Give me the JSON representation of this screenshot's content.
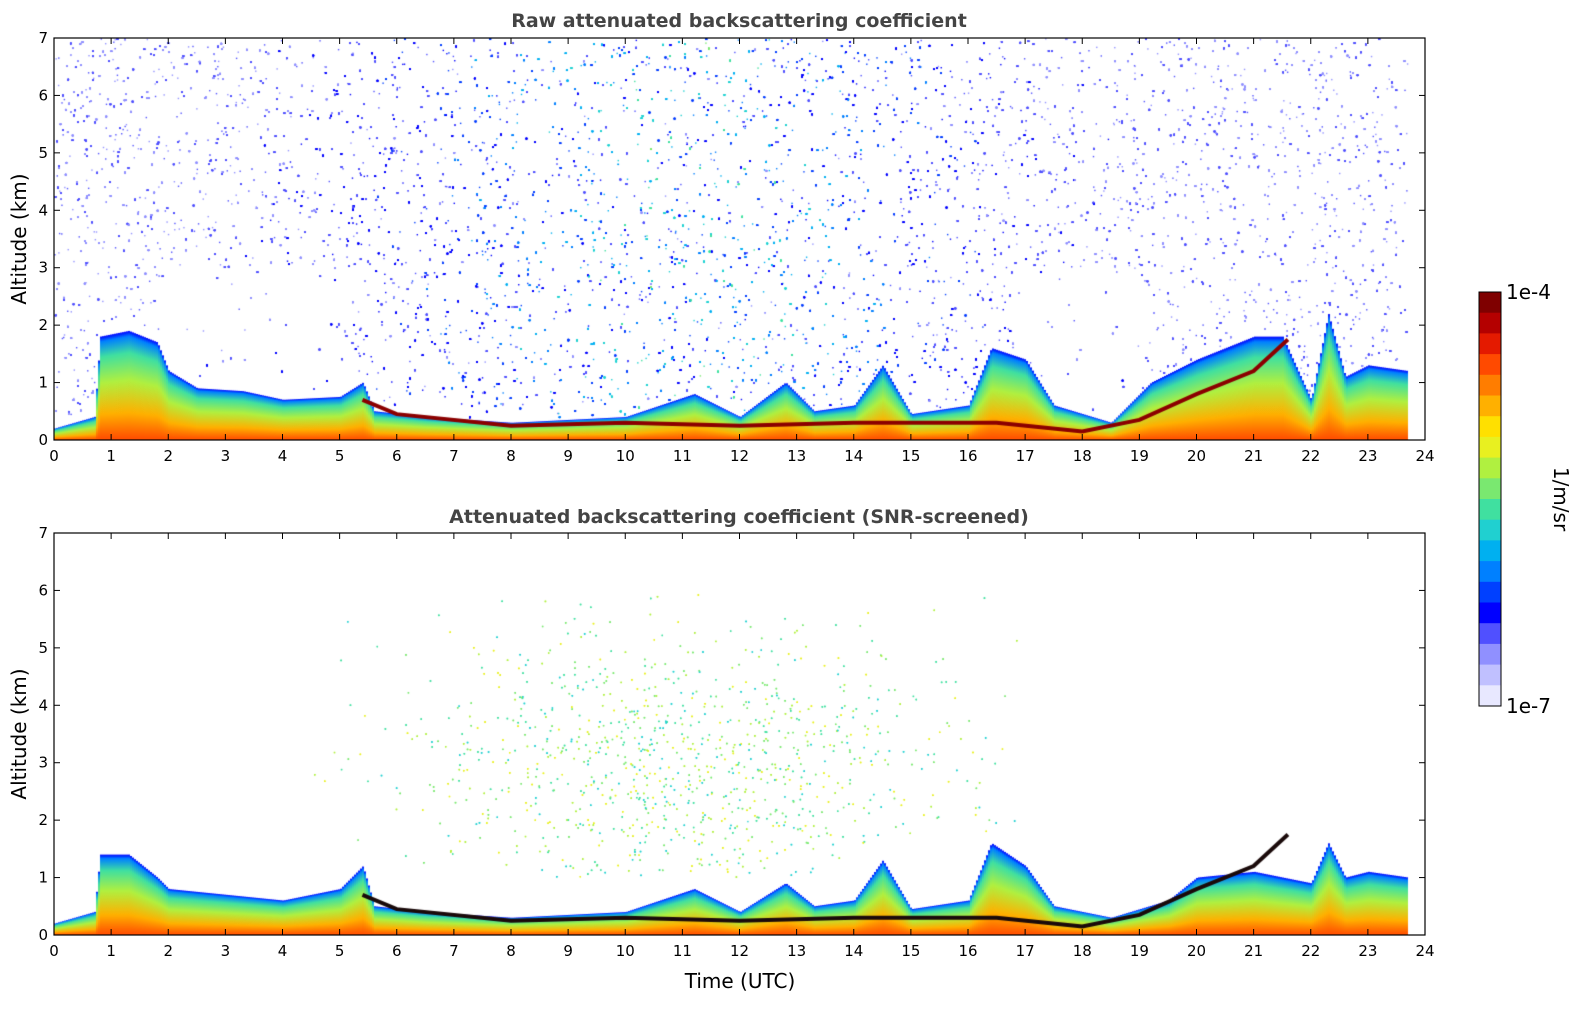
{
  "chart_data": [
    {
      "type": "heatmap",
      "title": "Raw attenuated backscattering coefficient",
      "xlabel": "",
      "ylabel": "Altitude (km)",
      "xlim": [
        0,
        24
      ],
      "ylim": [
        0,
        7
      ],
      "xticks": [
        "0",
        "1",
        "2",
        "3",
        "4",
        "5",
        "6",
        "7",
        "8",
        "9",
        "10",
        "11",
        "12",
        "13",
        "14",
        "15",
        "16",
        "17",
        "18",
        "19",
        "20",
        "21",
        "22",
        "23",
        "24"
      ],
      "yticks": [
        "0",
        "1",
        "2",
        "3",
        "4",
        "5",
        "6",
        "7"
      ],
      "data_end_hour": 23.7,
      "noise_level": "high",
      "boundary_layer_top_km": [
        [
          0,
          0.2
        ],
        [
          0.7,
          0.4
        ],
        [
          0.8,
          1.8
        ],
        [
          1.3,
          1.9
        ],
        [
          1.8,
          1.7
        ],
        [
          2,
          1.2
        ],
        [
          2.5,
          0.9
        ],
        [
          3.3,
          0.85
        ],
        [
          4,
          0.7
        ],
        [
          5,
          0.75
        ],
        [
          5.4,
          1.0
        ],
        [
          5.6,
          0.5
        ],
        [
          6.5,
          0.4
        ],
        [
          8,
          0.3
        ],
        [
          10,
          0.4
        ],
        [
          11.2,
          0.8
        ],
        [
          12,
          0.4
        ],
        [
          12.8,
          1.0
        ],
        [
          13.3,
          0.5
        ],
        [
          14,
          0.6
        ],
        [
          14.5,
          1.3
        ],
        [
          15,
          0.45
        ],
        [
          16,
          0.6
        ],
        [
          16.4,
          1.6
        ],
        [
          17,
          1.4
        ],
        [
          17.5,
          0.6
        ],
        [
          18.5,
          0.3
        ],
        [
          19.2,
          1.0
        ],
        [
          20,
          1.4
        ],
        [
          21,
          1.8
        ],
        [
          21.5,
          1.8
        ],
        [
          22,
          0.7
        ],
        [
          22.3,
          2.2
        ],
        [
          22.6,
          1.1
        ],
        [
          23,
          1.3
        ],
        [
          23.7,
          1.2
        ]
      ],
      "elevated_layer_km": [
        [
          5.4,
          0.7
        ],
        [
          6,
          0.45
        ],
        [
          8,
          0.25
        ],
        [
          10,
          0.3
        ],
        [
          12,
          0.25
        ],
        [
          14,
          0.3
        ],
        [
          15,
          0.3
        ],
        [
          16.5,
          0.3
        ],
        [
          18,
          0.15
        ],
        [
          19,
          0.35
        ],
        [
          20,
          0.8
        ],
        [
          21,
          1.2
        ],
        [
          21.6,
          1.75
        ]
      ],
      "colorscale_label": "1/m/sr"
    },
    {
      "type": "heatmap",
      "title": "Attenuated backscattering coefficient (SNR-screened)",
      "xlabel": "Time (UTC)",
      "ylabel": "Altitude (km)",
      "xlim": [
        0,
        24
      ],
      "ylim": [
        0,
        7
      ],
      "xticks": [
        "0",
        "1",
        "2",
        "3",
        "4",
        "5",
        "6",
        "7",
        "8",
        "9",
        "10",
        "11",
        "12",
        "13",
        "14",
        "15",
        "16",
        "17",
        "18",
        "19",
        "20",
        "21",
        "22",
        "23",
        "24"
      ],
      "yticks": [
        "0",
        "1",
        "2",
        "3",
        "4",
        "5",
        "6",
        "7"
      ],
      "data_end_hour": 23.7,
      "noise_level": "screened",
      "aerosol_haze_region": {
        "hours": [
          4.5,
          17
        ],
        "altitude_km": [
          1,
          6
        ]
      },
      "boundary_layer_top_km": [
        [
          0,
          0.2
        ],
        [
          0.7,
          0.4
        ],
        [
          0.8,
          1.4
        ],
        [
          1.3,
          1.4
        ],
        [
          1.8,
          1.0
        ],
        [
          2,
          0.8
        ],
        [
          3,
          0.7
        ],
        [
          4,
          0.6
        ],
        [
          5,
          0.8
        ],
        [
          5.4,
          1.2
        ],
        [
          5.6,
          0.5
        ],
        [
          6.5,
          0.4
        ],
        [
          8,
          0.3
        ],
        [
          10,
          0.4
        ],
        [
          11.2,
          0.8
        ],
        [
          12,
          0.4
        ],
        [
          12.8,
          0.9
        ],
        [
          13.3,
          0.5
        ],
        [
          14,
          0.6
        ],
        [
          14.5,
          1.3
        ],
        [
          15,
          0.45
        ],
        [
          16,
          0.6
        ],
        [
          16.4,
          1.6
        ],
        [
          17,
          1.2
        ],
        [
          17.5,
          0.5
        ],
        [
          18.5,
          0.3
        ],
        [
          19.5,
          0.6
        ],
        [
          20,
          1.0
        ],
        [
          21,
          1.1
        ],
        [
          22,
          0.9
        ],
        [
          22.3,
          1.6
        ],
        [
          22.6,
          1.0
        ],
        [
          23,
          1.1
        ],
        [
          23.7,
          1.0
        ]
      ],
      "elevated_layer_km": [
        [
          5.4,
          0.7
        ],
        [
          6,
          0.45
        ],
        [
          8,
          0.25
        ],
        [
          10,
          0.3
        ],
        [
          12,
          0.25
        ],
        [
          14,
          0.3
        ],
        [
          15,
          0.3
        ],
        [
          16.5,
          0.3
        ],
        [
          18,
          0.15
        ],
        [
          19,
          0.35
        ],
        [
          20,
          0.8
        ],
        [
          21,
          1.2
        ],
        [
          21.6,
          1.75
        ]
      ],
      "colorscale_label": "1/m/sr"
    }
  ],
  "colorbar": {
    "label": "1/m/sr",
    "max_label": "1e-4",
    "min_label": "1e-7",
    "colors": [
      "#7f0000",
      "#b40000",
      "#e41a00",
      "#ff4a00",
      "#ff7d00",
      "#ffb000",
      "#ffe000",
      "#e8f020",
      "#b0f040",
      "#7ae870",
      "#40e0a0",
      "#20d0d0",
      "#00b0f0",
      "#0080ff",
      "#0040ff",
      "#0000ff",
      "#5050ff",
      "#9090ff",
      "#c0c0ff",
      "#e8e8ff"
    ]
  }
}
